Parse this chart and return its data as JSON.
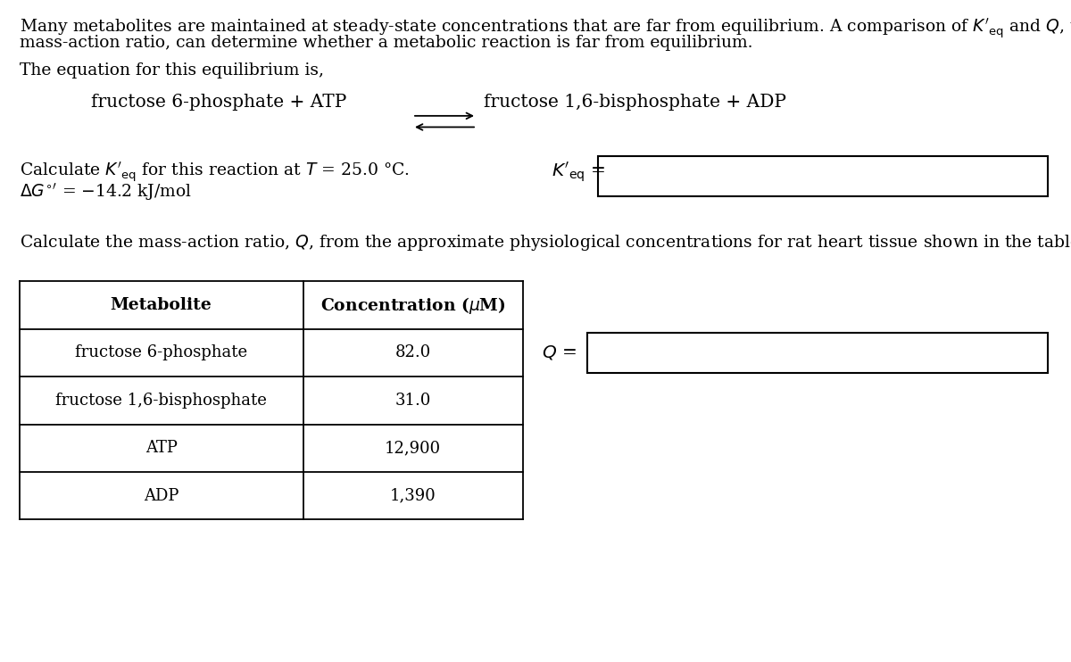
{
  "bg_color": "#ffffff",
  "font_size_body": 13.5,
  "font_size_equation": 14.5,
  "font_size_table_header": 13.5,
  "font_size_table_body": 13.0,
  "font_size_label": 14.5,
  "table_rows": [
    [
      "fructose 6-phosphate",
      "82.0"
    ],
    [
      "fructose 1,6-bisphosphate",
      "31.0"
    ],
    [
      "ATP",
      "12,900"
    ],
    [
      "ADP",
      "1,390"
    ]
  ]
}
